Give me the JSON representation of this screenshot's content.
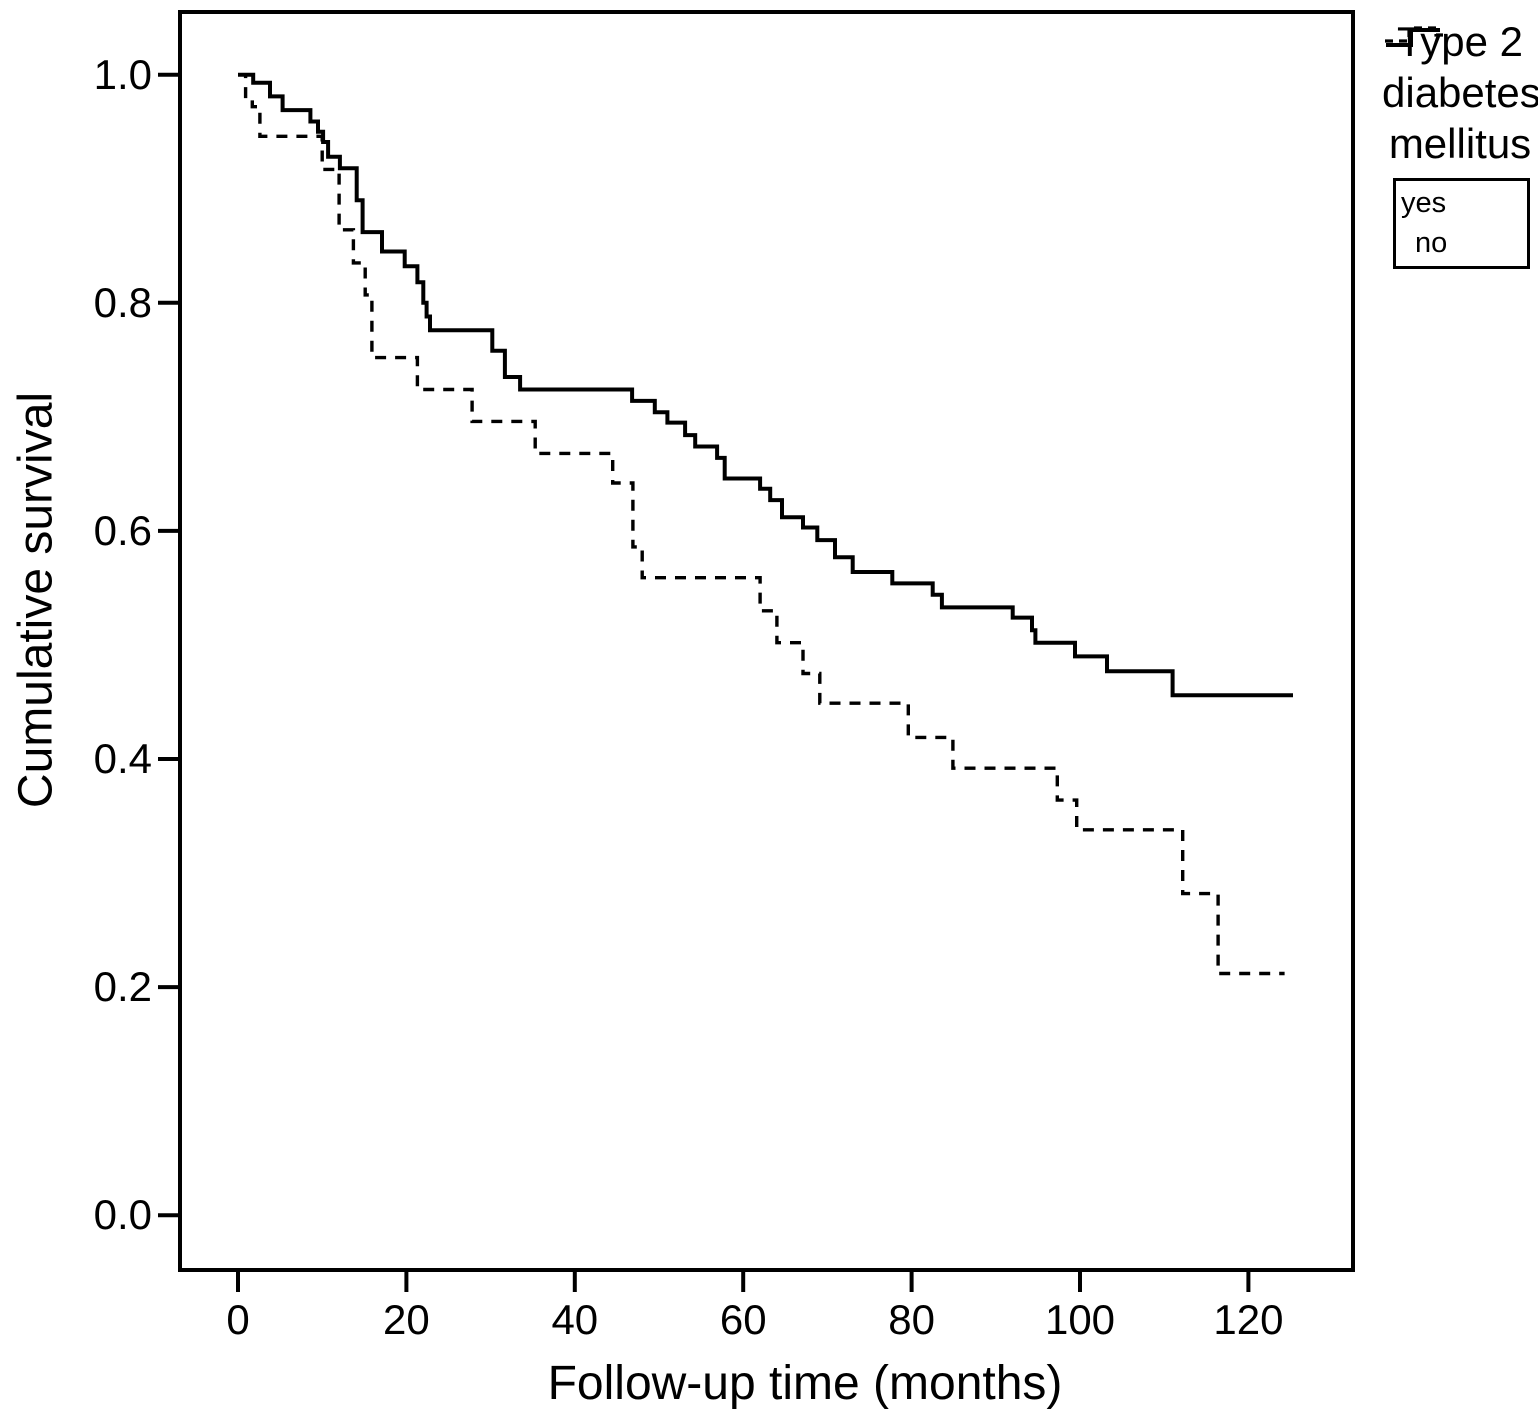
{
  "figure": {
    "background": "#ffffff",
    "ink": "#000000"
  },
  "chart_data": {
    "type": "line",
    "subtype": "kaplan-meier-step",
    "title": "",
    "xlabel": "Follow-up time (months)",
    "ylabel": "Cumulative survival",
    "xlim": [
      -6.89,
      132.42
    ],
    "ylim": [
      -0.048,
      1.055
    ],
    "xticks": [
      0,
      20,
      40,
      60,
      80,
      100,
      120
    ],
    "xtick_labels": [
      "0",
      "20",
      "40",
      "60",
      "80",
      "100",
      "120"
    ],
    "yticks": [
      0.0,
      0.2,
      0.4,
      0.6,
      0.8,
      1.0
    ],
    "ytick_labels": [
      "0.0",
      "0.2",
      "0.4",
      "0.6",
      "0.8",
      "1.0"
    ],
    "grid": false,
    "legend": {
      "title_lines": [
        "Type 2",
        "diabetes",
        "mellitus"
      ],
      "position": "outside-top-right",
      "entries": [
        {
          "label": "yes",
          "style": "dashed"
        },
        {
          "label": "no",
          "style": "solid"
        }
      ]
    },
    "series": [
      {
        "name": "yes",
        "style": "dashed",
        "points": [
          [
            0,
            1.0
          ],
          [
            0.9,
            0.981
          ],
          [
            1.7,
            0.972
          ],
          [
            2.6,
            0.946
          ],
          [
            10,
            0.917
          ],
          [
            12,
            0.864
          ],
          [
            13.7,
            0.835
          ],
          [
            15.1,
            0.807
          ],
          [
            15.9,
            0.752
          ],
          [
            21.3,
            0.724
          ],
          [
            27.8,
            0.696
          ],
          [
            35.3,
            0.668
          ],
          [
            44.5,
            0.642
          ],
          [
            46.9,
            0.586
          ],
          [
            48,
            0.559
          ],
          [
            62,
            0.53
          ],
          [
            64,
            0.502
          ],
          [
            67.1,
            0.475
          ],
          [
            69.1,
            0.449
          ],
          [
            79.6,
            0.419
          ],
          [
            84.9,
            0.392
          ],
          [
            97.3,
            0.364
          ],
          [
            99.6,
            0.338
          ],
          [
            112.2,
            0.282
          ],
          [
            116.4,
            0.212
          ],
          [
            124.3,
            0.212
          ]
        ]
      },
      {
        "name": "no",
        "style": "solid",
        "points": [
          [
            0,
            1.0
          ],
          [
            1.8,
            0.993
          ],
          [
            3.8,
            0.981
          ],
          [
            5.3,
            0.969
          ],
          [
            8.6,
            0.959
          ],
          [
            9.5,
            0.95
          ],
          [
            10.1,
            0.941
          ],
          [
            10.7,
            0.928
          ],
          [
            12.1,
            0.918
          ],
          [
            14.1,
            0.89
          ],
          [
            14.8,
            0.862
          ],
          [
            17.1,
            0.845
          ],
          [
            19.8,
            0.832
          ],
          [
            21.3,
            0.818
          ],
          [
            22,
            0.8
          ],
          [
            22.4,
            0.788
          ],
          [
            22.8,
            0.776
          ],
          [
            30.2,
            0.758
          ],
          [
            31.7,
            0.735
          ],
          [
            33.5,
            0.724
          ],
          [
            46.8,
            0.714
          ],
          [
            49.5,
            0.704
          ],
          [
            51,
            0.695
          ],
          [
            53.1,
            0.684
          ],
          [
            54.3,
            0.674
          ],
          [
            56.9,
            0.664
          ],
          [
            57.8,
            0.646
          ],
          [
            62,
            0.637
          ],
          [
            63.2,
            0.627
          ],
          [
            64.6,
            0.612
          ],
          [
            67.1,
            0.603
          ],
          [
            68.8,
            0.592
          ],
          [
            70.9,
            0.577
          ],
          [
            73,
            0.564
          ],
          [
            77.7,
            0.554
          ],
          [
            82.5,
            0.544
          ],
          [
            83.6,
            0.533
          ],
          [
            92,
            0.524
          ],
          [
            94.3,
            0.513
          ],
          [
            94.7,
            0.502
          ],
          [
            99.4,
            0.49
          ],
          [
            103.2,
            0.477
          ],
          [
            111,
            0.456
          ],
          [
            125.3,
            0.456
          ]
        ]
      }
    ]
  }
}
